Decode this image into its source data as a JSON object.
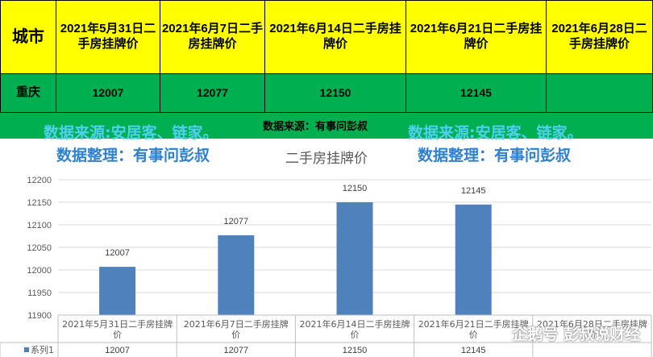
{
  "table": {
    "header_city": "城市",
    "date_headers": [
      "2021年5月31日二手房挂牌价",
      "2021年6月7日二手房挂牌价",
      "2021年6月14日二手房挂牌价",
      "2021年6月21日二手房挂牌价",
      "2021年6月28日二手房挂牌价"
    ],
    "row_city": "重庆",
    "row_values": [
      "12007",
      "12077",
      "12150",
      "12145",
      ""
    ]
  },
  "watermarks": {
    "source_left": "数据来源:安居客、链家。",
    "source_right": "数据来源:安居客、链家。",
    "source_center": "数据来源：有事问彭叔",
    "organizer_left": "数据整理：有事问彭叔",
    "organizer_right": "数据整理：有事问彭叔",
    "brand": "企鹅号 彭叔说财经"
  },
  "chart_data": {
    "type": "bar",
    "title": "二手房挂牌价",
    "categories": [
      "2021年5月31日二手房挂牌价",
      "2021年6月7日二手房挂牌价",
      "2021年6月14日二手房挂牌价",
      "2021年6月21日二手房挂牌价",
      "2021年6月28日二手房挂牌价"
    ],
    "series": [
      {
        "name": "系列1",
        "values": [
          12007,
          12077,
          12150,
          12145,
          null
        ],
        "color": "#4f81bd"
      }
    ],
    "ylim": [
      11900,
      12200
    ],
    "yticks": [
      11900,
      11950,
      12000,
      12050,
      12100,
      12150,
      12200
    ],
    "data_table": true,
    "grid": true
  }
}
